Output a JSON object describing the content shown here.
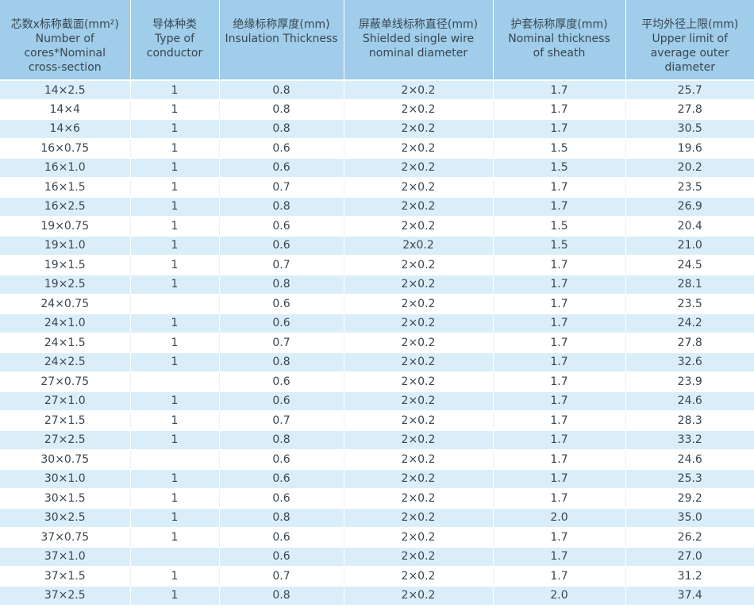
{
  "table": {
    "headers": [
      [
        "芯数x标称截面(mm²)",
        "Number of",
        "cores*Nominal",
        "cross-section"
      ],
      [
        "导体种类",
        "Type of",
        "conductor"
      ],
      [
        "绝缘标称厚度(mm)",
        "Insulation Thickness"
      ],
      [
        "屏蔽单线标称直径(mm)",
        "Shielded single wire",
        "nominal diameter"
      ],
      [
        "护套标称厚度(mm)",
        "Nominal thickness",
        "of sheath"
      ],
      [
        "平均外径上限(mm)",
        "Upper limit of",
        "average outer",
        "diameter"
      ]
    ],
    "rows": [
      [
        "14×2.5",
        "1",
        "0.8",
        "2×0.2",
        "1.7",
        "25.7"
      ],
      [
        "14×4",
        "1",
        "0.8",
        "2×0.2",
        "1.7",
        "27.8"
      ],
      [
        "14×6",
        "1",
        "0.8",
        "2×0.2",
        "1.7",
        "30.5"
      ],
      [
        "16×0.75",
        "1",
        "0.6",
        "2×0.2",
        "1.5",
        "19.6"
      ],
      [
        "16×1.0",
        "1",
        "0.6",
        "2×0.2",
        "1.5",
        "20.2"
      ],
      [
        "16×1.5",
        "1",
        "0.7",
        "2×0.2",
        "1.7",
        "23.5"
      ],
      [
        "16×2.5",
        "1",
        "0.8",
        "2×0.2",
        "1.7",
        "26.9"
      ],
      [
        "19×0.75",
        "1",
        "0.6",
        "2×0.2",
        "1.5",
        "20.4"
      ],
      [
        "19×1.0",
        "1",
        "0.6",
        "2x0.2",
        "1.5",
        "21.0"
      ],
      [
        "19×1.5",
        "1",
        "0.7",
        "2×0.2",
        "1.7",
        "24.5"
      ],
      [
        "19×2.5",
        "1",
        "0.8",
        "2×0.2",
        "1.7",
        "28.1"
      ],
      [
        "24×0.75",
        "",
        "0.6",
        "2×0.2",
        "1.7",
        "23.5"
      ],
      [
        "24×1.0",
        "1",
        "0.6",
        "2×0.2",
        "1.7",
        "24.2"
      ],
      [
        "24×1.5",
        "1",
        "0.7",
        "2×0.2",
        "1.7",
        "27.8"
      ],
      [
        "24×2.5",
        "1",
        "0.8",
        "2×0.2",
        "1.7",
        "32.6"
      ],
      [
        "27×0.75",
        "",
        "0.6",
        "2×0.2",
        "1.7",
        "23.9"
      ],
      [
        "27×1.0",
        "1",
        "0.6",
        "2×0.2",
        "1.7",
        "24.6"
      ],
      [
        "27×1.5",
        "1",
        "0.7",
        "2×0.2",
        "1.7",
        "28.3"
      ],
      [
        "27×2.5",
        "1",
        "0.8",
        "2×0.2",
        "1.7",
        "33.2"
      ],
      [
        "30×0.75",
        "",
        "0.6",
        "2×0.2",
        "1.7",
        "24.6"
      ],
      [
        "30×1.0",
        "1",
        "0.6",
        "2×0.2",
        "1.7",
        "25.3"
      ],
      [
        "30×1.5",
        "1",
        "0.6",
        "2×0.2",
        "1.7",
        "29.2"
      ],
      [
        "30×2.5",
        "1",
        "0.8",
        "2×0.2",
        "2.0",
        "35.0"
      ],
      [
        "37×0.75",
        "1",
        "0.6",
        "2×0.2",
        "1.7",
        "26.2"
      ],
      [
        "37×1.0",
        "",
        "0.6",
        "2×0.2",
        "1.7",
        "27.0"
      ],
      [
        "37×1.5",
        "1",
        "0.7",
        "2×0.2",
        "1.7",
        "31.2"
      ],
      [
        "37×2.5",
        "1",
        "0.8",
        "2×0.2",
        "2.0",
        "37.4"
      ]
    ]
  },
  "colors": {
    "header_bg": "#9fcdea",
    "row_stripe_bg": "#daeefa",
    "text": "#3a4650"
  }
}
